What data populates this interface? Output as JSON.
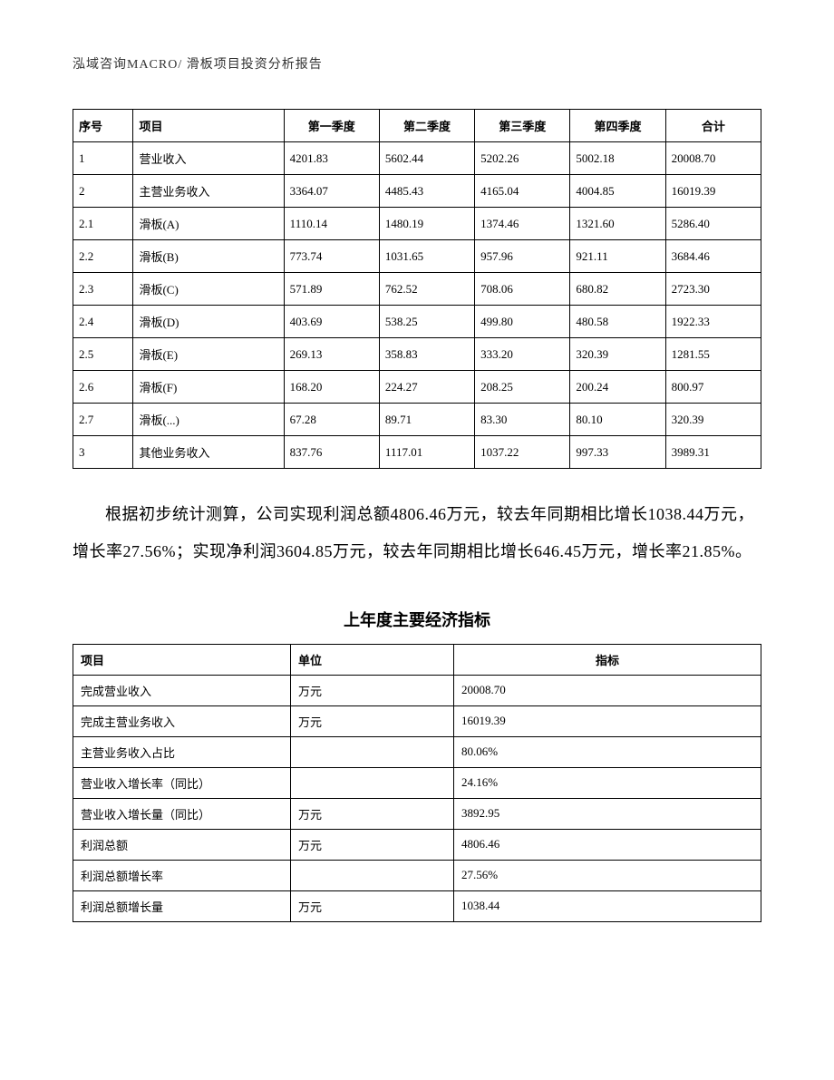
{
  "header": "泓域咨询MACRO/   滑板项目投资分析报告",
  "table1": {
    "headers": [
      "序号",
      "项目",
      "第一季度",
      "第二季度",
      "第三季度",
      "第四季度",
      "合计"
    ],
    "rows": [
      [
        "1",
        "营业收入",
        "4201.83",
        "5602.44",
        "5202.26",
        "5002.18",
        "20008.70"
      ],
      [
        "2",
        "主营业务收入",
        "3364.07",
        "4485.43",
        "4165.04",
        "4004.85",
        "16019.39"
      ],
      [
        "2.1",
        "滑板(A)",
        "1110.14",
        "1480.19",
        "1374.46",
        "1321.60",
        "5286.40"
      ],
      [
        "2.2",
        "滑板(B)",
        "773.74",
        "1031.65",
        "957.96",
        "921.11",
        "3684.46"
      ],
      [
        "2.3",
        "滑板(C)",
        "571.89",
        "762.52",
        "708.06",
        "680.82",
        "2723.30"
      ],
      [
        "2.4",
        "滑板(D)",
        "403.69",
        "538.25",
        "499.80",
        "480.58",
        "1922.33"
      ],
      [
        "2.5",
        "滑板(E)",
        "269.13",
        "358.83",
        "333.20",
        "320.39",
        "1281.55"
      ],
      [
        "2.6",
        "滑板(F)",
        "168.20",
        "224.27",
        "208.25",
        "200.24",
        "800.97"
      ],
      [
        "2.7",
        "滑板(...)",
        "67.28",
        "89.71",
        "83.30",
        "80.10",
        "320.39"
      ],
      [
        "3",
        "其他业务收入",
        "837.76",
        "1117.01",
        "1037.22",
        "997.33",
        "3989.31"
      ]
    ]
  },
  "paragraph": "根据初步统计测算，公司实现利润总额4806.46万元，较去年同期相比增长1038.44万元，增长率27.56%；实现净利润3604.85万元，较去年同期相比增长646.45万元，增长率21.85%。",
  "section_title": "上年度主要经济指标",
  "table2": {
    "headers": [
      "项目",
      "单位",
      "指标"
    ],
    "rows": [
      [
        "完成营业收入",
        "万元",
        "20008.70"
      ],
      [
        "完成主营业务收入",
        "万元",
        "16019.39"
      ],
      [
        "主营业务收入占比",
        "",
        "80.06%"
      ],
      [
        "营业收入增长率（同比）",
        "",
        "24.16%"
      ],
      [
        "营业收入增长量（同比）",
        "万元",
        "3892.95"
      ],
      [
        "利润总额",
        "万元",
        "4806.46"
      ],
      [
        "利润总额增长率",
        "",
        "27.56%"
      ],
      [
        "利润总额增长量",
        "万元",
        "1038.44"
      ]
    ]
  }
}
